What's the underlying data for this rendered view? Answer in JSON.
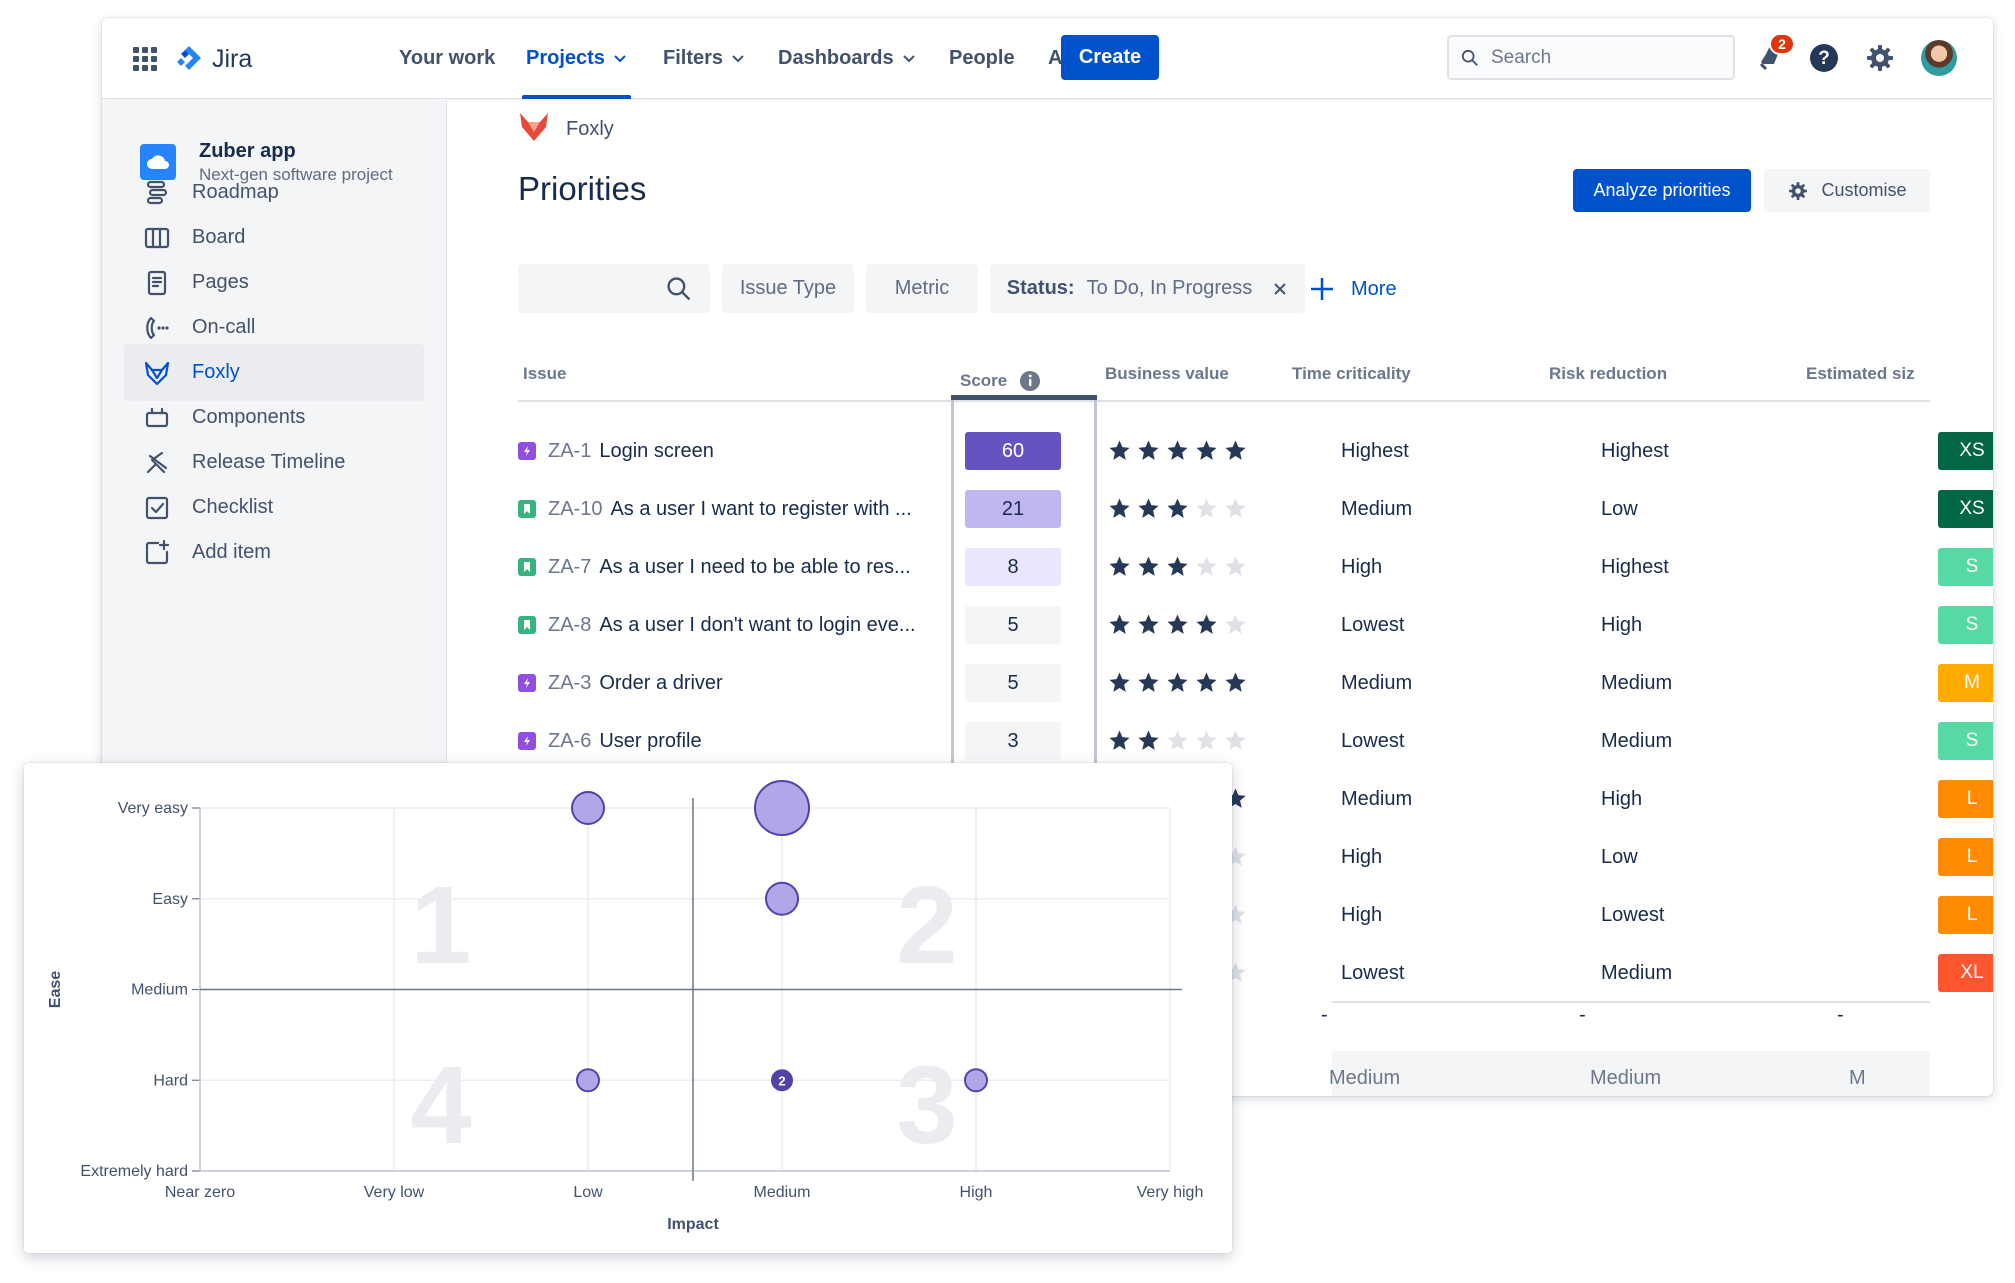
{
  "topnav": {
    "product": "Jira",
    "items": [
      {
        "label": "Your work",
        "dropdown": false,
        "active": false
      },
      {
        "label": "Projects",
        "dropdown": true,
        "active": true
      },
      {
        "label": "Filters",
        "dropdown": true,
        "active": false
      },
      {
        "label": "Dashboards",
        "dropdown": true,
        "active": false
      },
      {
        "label": "People",
        "dropdown": false,
        "active": false
      },
      {
        "label": "Apps",
        "dropdown": true,
        "active": false
      }
    ],
    "create_label": "Create",
    "search_placeholder": "Search",
    "notification_count": "2"
  },
  "sidebar": {
    "project_name": "Zuber app",
    "project_type": "Next-gen software project",
    "items": [
      {
        "label": "Roadmap",
        "icon": "roadmap-icon",
        "active": false
      },
      {
        "label": "Board",
        "icon": "board-icon",
        "active": false
      },
      {
        "label": "Pages",
        "icon": "pages-icon",
        "active": false
      },
      {
        "label": "On-call",
        "icon": "on-call-icon",
        "active": false
      },
      {
        "label": "Foxly",
        "icon": "foxly-icon",
        "active": true
      },
      {
        "label": "Components",
        "icon": "components-icon",
        "active": false
      },
      {
        "label": "Release Timeline",
        "icon": "release-timeline-icon",
        "active": false
      },
      {
        "label": "Checklist",
        "icon": "checklist-icon",
        "active": false
      },
      {
        "label": "Add item",
        "icon": "add-item-icon",
        "active": false
      }
    ]
  },
  "main": {
    "breadcrumb": "Foxly",
    "title": "Priorities",
    "analyze_label": "Analyze priorities",
    "customise_label": "Customise",
    "filters": {
      "issue_type": "Issue Type",
      "metric": "Metric",
      "status_key": "Status:",
      "status_value": "To Do, In Progress",
      "more": "More"
    },
    "columns": {
      "issue": "Issue",
      "score": "Score",
      "business_value": "Business value",
      "time_criticality": "Time criticality",
      "risk_reduction": "Risk reduction",
      "estimated_size": "Estimated siz"
    },
    "rows": [
      {
        "key": "ZA-1",
        "summary": "Login screen",
        "type": "epic",
        "score": "60",
        "stars": 5,
        "time": "Highest",
        "risk": "Highest",
        "size": "XS",
        "size_color": "#006644",
        "score_bg": "#6554C0",
        "score_fg": "#FFFFFF"
      },
      {
        "key": "ZA-10",
        "summary": "As a user I want to register with ...",
        "type": "story",
        "score": "21",
        "stars": 3,
        "time": "Medium",
        "risk": "Low",
        "size": "XS",
        "size_color": "#006644",
        "score_bg": "#C0B6F2",
        "score_fg": "#172B4D"
      },
      {
        "key": "ZA-7",
        "summary": "As a user I need to be able to res...",
        "type": "story",
        "score": "8",
        "stars": 3,
        "time": "High",
        "risk": "Highest",
        "size": "S",
        "size_color": "#57D9A3",
        "score_bg": "#EAE6FF",
        "score_fg": "#172B4D"
      },
      {
        "key": "ZA-8",
        "summary": "As a user I don't want to login eve...",
        "type": "story",
        "score": "5",
        "stars": 4,
        "time": "Lowest",
        "risk": "High",
        "size": "S",
        "size_color": "#57D9A3",
        "score_bg": "#F4F5F7",
        "score_fg": "#172B4D"
      },
      {
        "key": "ZA-3",
        "summary": "Order a driver",
        "type": "epic",
        "score": "5",
        "stars": 5,
        "time": "Medium",
        "risk": "Medium",
        "size": "M",
        "size_color": "#FFAB00",
        "score_bg": "#F4F5F7",
        "score_fg": "#172B4D"
      },
      {
        "key": "ZA-6",
        "summary": "User profile",
        "type": "epic",
        "score": "3",
        "stars": 2,
        "time": "Lowest",
        "risk": "Medium",
        "size": "S",
        "size_color": "#57D9A3",
        "score_bg": "#F4F5F7",
        "score_fg": "#172B4D"
      },
      {
        "key": "",
        "summary": "",
        "type": "",
        "score": "",
        "stars": 5,
        "time": "Medium",
        "risk": "High",
        "size": "L",
        "size_color": "#FF8B00",
        "score_bg": "",
        "score_fg": ""
      },
      {
        "key": "",
        "summary": "",
        "type": "",
        "score": "",
        "stars": 0,
        "time": "High",
        "risk": "Low",
        "size": "L",
        "size_color": "#FF8B00",
        "score_bg": "",
        "score_fg": ""
      },
      {
        "key": "",
        "summary": "",
        "type": "",
        "score": "",
        "stars": 0,
        "time": "High",
        "risk": "Lowest",
        "size": "L",
        "size_color": "#FF8B00",
        "score_bg": "",
        "score_fg": ""
      },
      {
        "key": "",
        "summary": "",
        "type": "",
        "score": "",
        "stars": 0,
        "time": "Lowest",
        "risk": "Medium",
        "size": "XL",
        "size_color": "#FF5630",
        "score_bg": "",
        "score_fg": ""
      }
    ],
    "summary_row": {
      "time": "-",
      "risk": "-",
      "size": "-"
    },
    "average_row": {
      "business": "Medium",
      "time": "Medium",
      "size": "M"
    }
  },
  "chart_data": {
    "type": "scatter",
    "title": "",
    "xlabel": "Impact",
    "ylabel": "Ease",
    "x_categories": [
      "Near zero",
      "Very low",
      "Low",
      "Medium",
      "High",
      "Very high"
    ],
    "y_categories": [
      "Extremely hard",
      "Hard",
      "Medium",
      "Easy",
      "Very easy"
    ],
    "quadrants": [
      "1",
      "2",
      "3",
      "4"
    ],
    "points": [
      {
        "x": "Low",
        "y": "Very easy",
        "count": 1,
        "size": "medium"
      },
      {
        "x": "Medium",
        "y": "Very easy",
        "count": 1,
        "size": "large"
      },
      {
        "x": "Medium",
        "y": "Easy",
        "count": 1,
        "size": "medium"
      },
      {
        "x": "Low",
        "y": "Hard",
        "count": 1,
        "size": "small"
      },
      {
        "x": "Medium",
        "y": "Hard",
        "count": 2,
        "label": "2",
        "size": "small"
      },
      {
        "x": "High",
        "y": "Hard",
        "count": 1,
        "size": "small"
      }
    ],
    "colors": {
      "point_fill": "#B3A6E8",
      "point_stroke": "#5243AA",
      "label_fill": "#5243AA"
    }
  }
}
